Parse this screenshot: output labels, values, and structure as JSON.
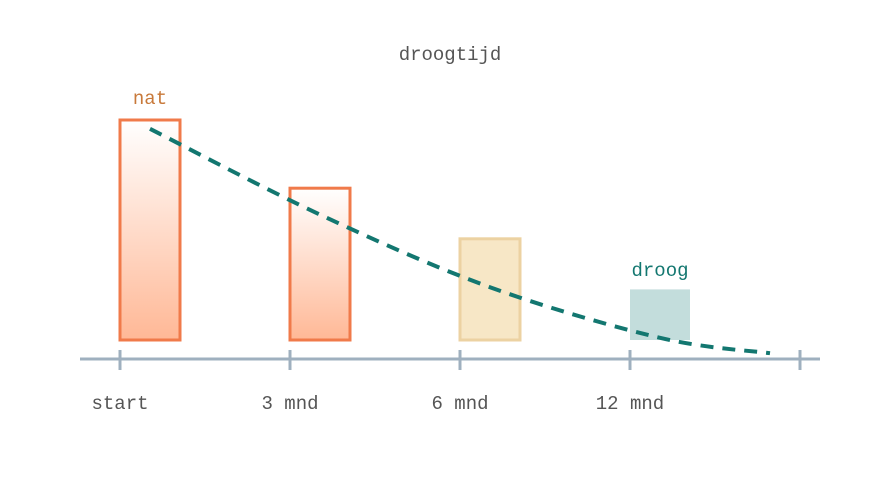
{
  "title": "droogtijd",
  "colors": {
    "wet": "#f07a4a",
    "wet_fill": "#ffb896",
    "medium": "#ecd2a2",
    "medium_fill": "#f7e7c6",
    "dry": "#c3dddc",
    "trend": "#137770",
    "axis": "#9fb0bf",
    "text": "#555555"
  },
  "labels": {
    "wet": "nat",
    "dry": "droog"
  },
  "chart_data": {
    "type": "bar",
    "categories": [
      "start",
      "3 mnd",
      "6 mnd",
      "12 mnd"
    ],
    "values": [
      100,
      69,
      46,
      23
    ],
    "ylim": [
      0,
      100
    ],
    "trend_line": {
      "style": "dashed",
      "values": [
        96,
        57,
        24,
        1,
        -6
      ]
    }
  }
}
